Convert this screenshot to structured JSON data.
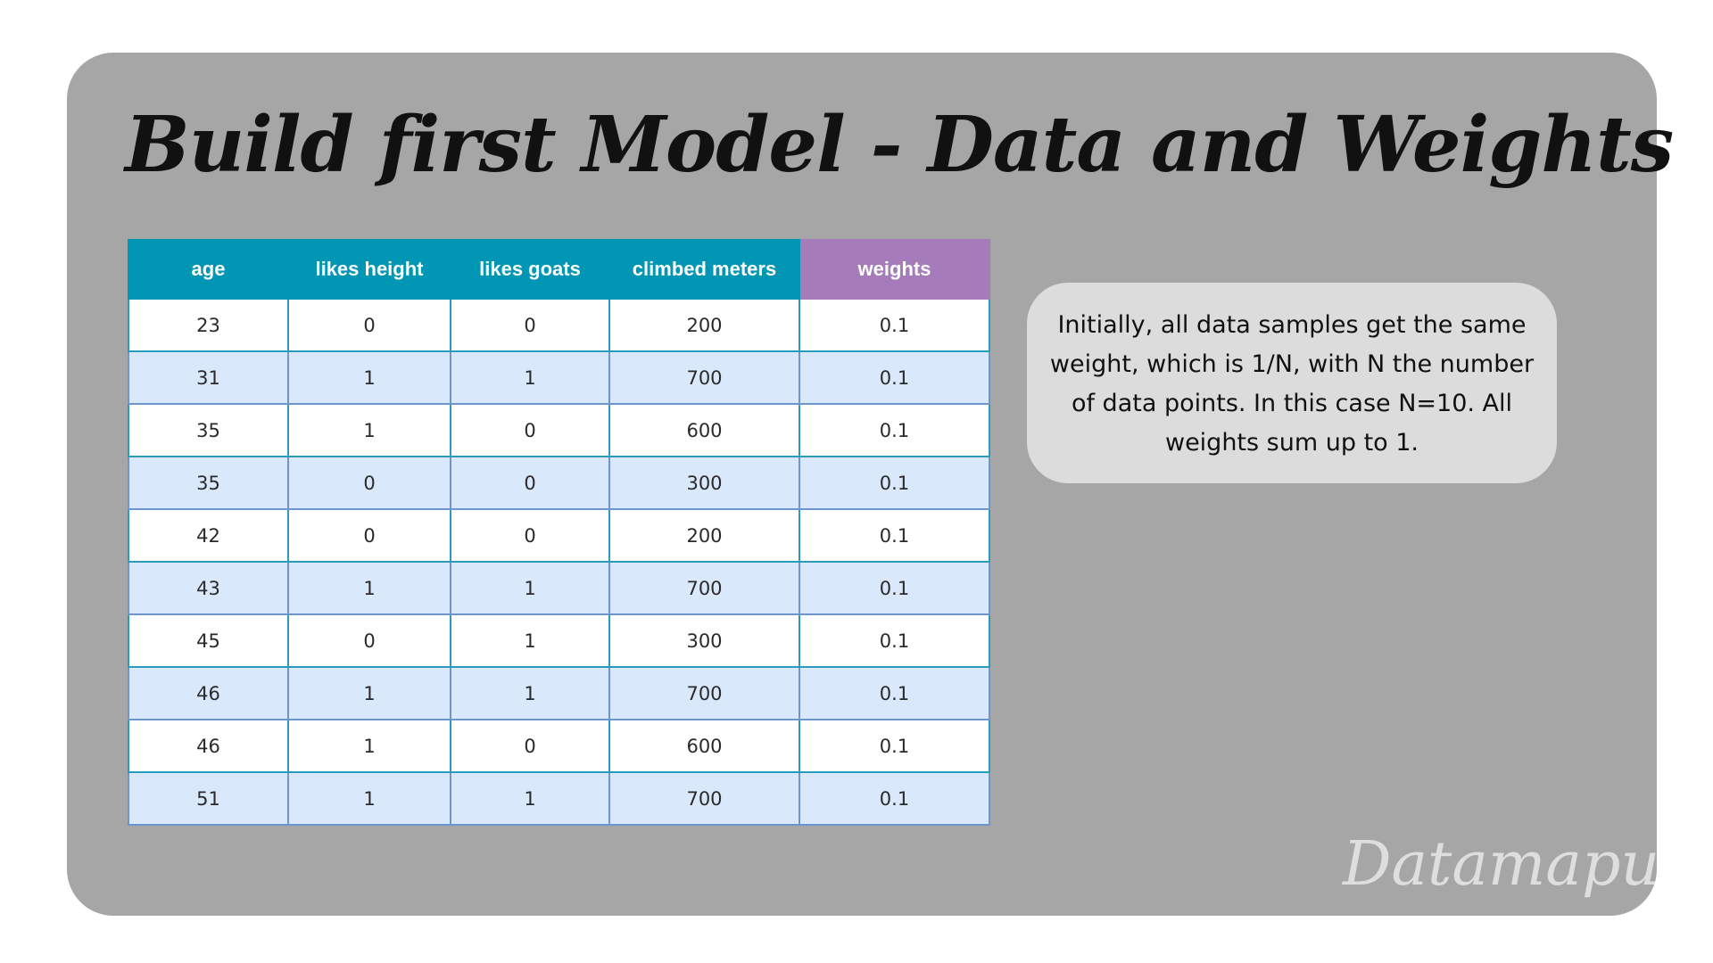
{
  "slide": {
    "title": "Build first Model - Data and Weights"
  },
  "table": {
    "headers": [
      "age",
      "likes height",
      "likes goats",
      "climbed meters",
      "weights"
    ],
    "rows": [
      [
        "23",
        "0",
        "0",
        "200",
        "0.1"
      ],
      [
        "31",
        "1",
        "1",
        "700",
        "0.1"
      ],
      [
        "35",
        "1",
        "0",
        "600",
        "0.1"
      ],
      [
        "35",
        "0",
        "0",
        "300",
        "0.1"
      ],
      [
        "42",
        "0",
        "0",
        "200",
        "0.1"
      ],
      [
        "43",
        "1",
        "1",
        "700",
        "0.1"
      ],
      [
        "45",
        "0",
        "1",
        "300",
        "0.1"
      ],
      [
        "46",
        "1",
        "1",
        "700",
        "0.1"
      ],
      [
        "46",
        "1",
        "0",
        "600",
        "0.1"
      ],
      [
        "51",
        "1",
        "1",
        "700",
        "0.1"
      ]
    ]
  },
  "callout": {
    "text": "Initially, all data samples get the same weight, which is 1/N, with N the number of data points. In this case N=10. All weights sum up to 1."
  },
  "brand": {
    "name": "Datamapu"
  },
  "colors": {
    "panel_background": "#a6a6a6",
    "header_teal": "#0296b5",
    "header_weights_purple": "#a57cb9",
    "row_stripe_blue": "#dae8fb",
    "callout_background": "#dcdcdc"
  }
}
